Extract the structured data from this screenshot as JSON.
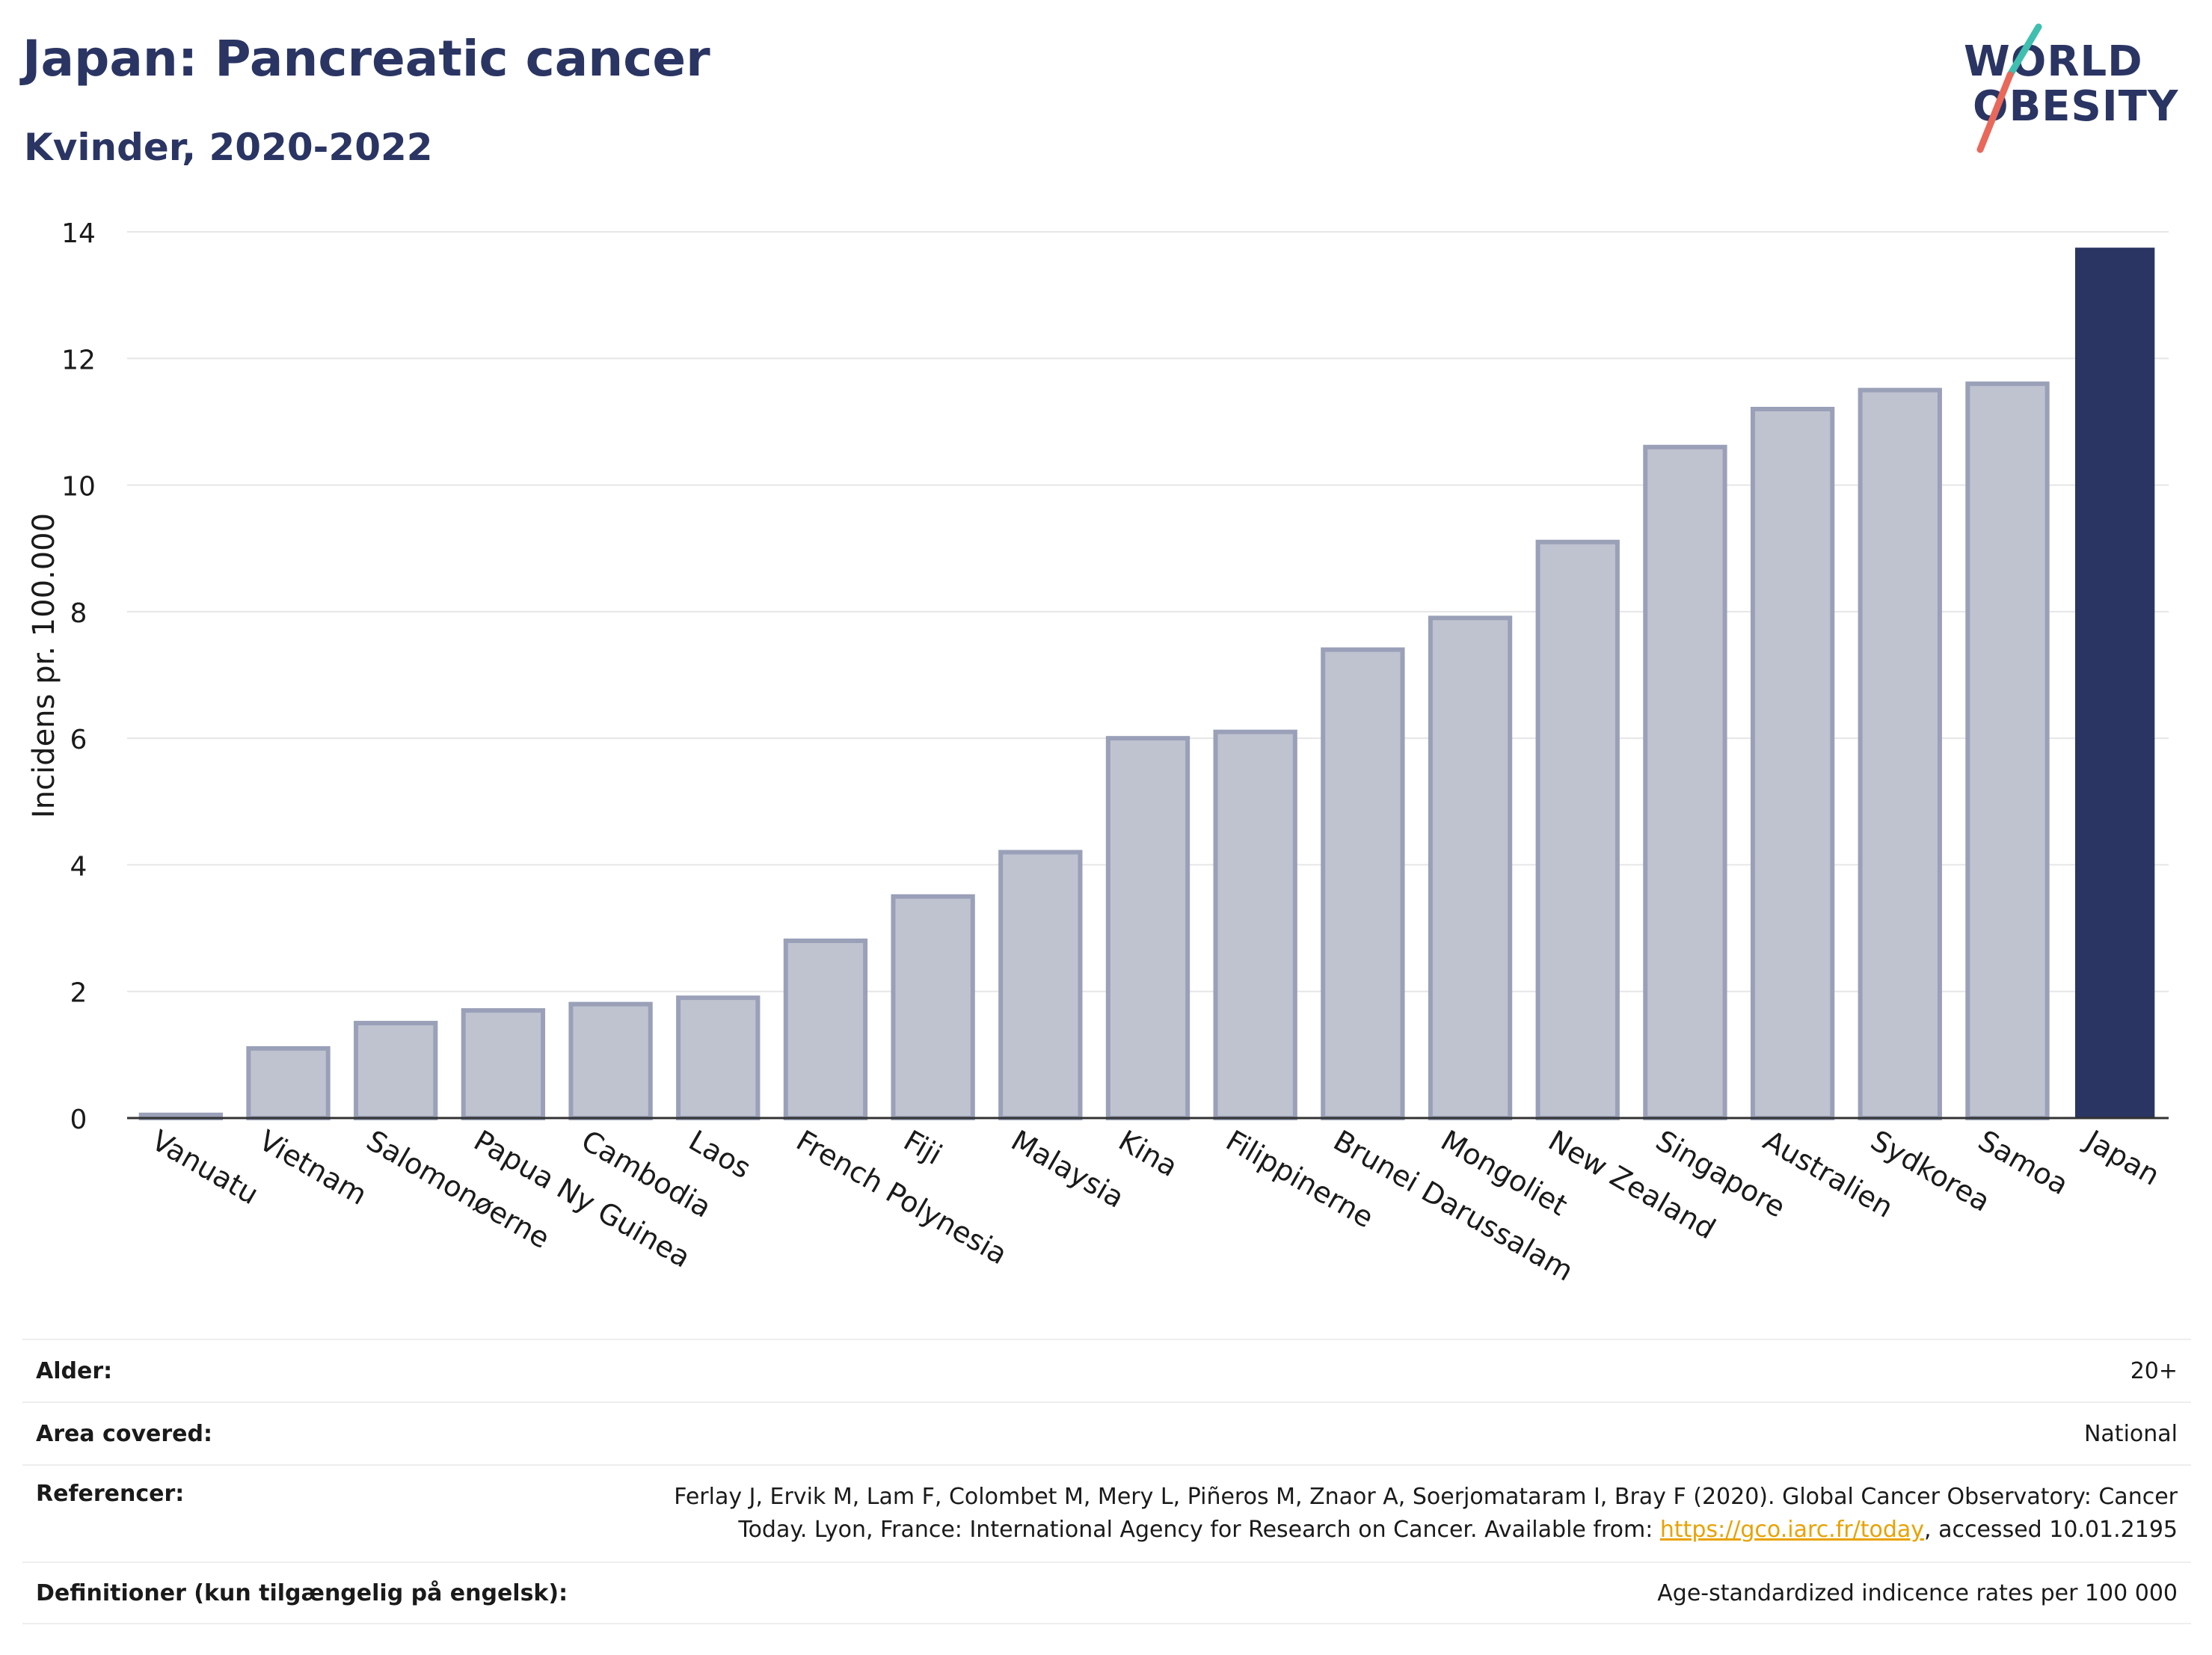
{
  "title": "Japan: Pancreatic cancer",
  "subtitle": "Kvinder, 2020-2022",
  "logo": {
    "line1": "WORLD",
    "line2": "OBESITY"
  },
  "colors": {
    "highlight": "#2a3563",
    "bar": "#bfc3d0",
    "bar_stroke": "#9aa0b8",
    "axis": "#333333",
    "grid": "#e6e6e6",
    "link": "#e8a200"
  },
  "chart_data": {
    "type": "bar",
    "title": "Japan: Pancreatic cancer",
    "subtitle": "Kvinder, 2020-2022",
    "xlabel": "",
    "ylabel": "Incidens pr. 100.000",
    "ylim": [
      0,
      14
    ],
    "yticks": [
      0,
      2,
      4,
      6,
      8,
      10,
      12,
      14
    ],
    "categories": [
      "Vanuatu",
      "Vietnam",
      "Salomonøerne",
      "Papua Ny Guinea",
      "Cambodia",
      "Laos",
      "French Polynesia",
      "Fiji",
      "Malaysia",
      "Kina",
      "Filippinerne",
      "Brunei Darussalam",
      "Mongoliet",
      "New Zealand",
      "Singapore",
      "Australien",
      "Sydkorea",
      "Samoa",
      "Japan"
    ],
    "values": [
      0.05,
      1.1,
      1.5,
      1.7,
      1.8,
      1.9,
      2.8,
      3.5,
      4.2,
      6.0,
      6.1,
      7.4,
      7.9,
      9.1,
      10.6,
      11.2,
      11.5,
      11.6,
      13.75
    ],
    "highlight": "Japan",
    "grid": true
  },
  "meta": {
    "age_label": "Alder:",
    "age_value": "20+",
    "area_label": "Area covered:",
    "area_value": "National",
    "ref_label": "Referencer:",
    "ref_line1": "Ferlay J, Ervik M, Lam F, Colombet M, Mery L, Piñeros M, Znaor A, Soerjomataram I, Bray F (2020). Global Cancer Observatory: Cancer",
    "ref_line2_pre": "Today. Lyon, France: International Agency for Research on Cancer. Available from: ",
    "ref_link": "https://gco.iarc.fr/today",
    "ref_line2_post": ", accessed 10.01.2195",
    "def_label": "Definitioner (kun tilgængelig på engelsk):",
    "def_value": "Age-standardized indicence rates per 100 000"
  }
}
